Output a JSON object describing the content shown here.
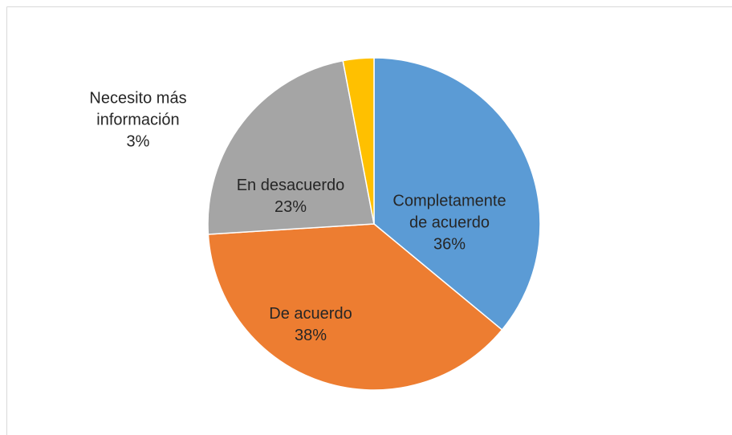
{
  "chart_data": {
    "type": "pie",
    "categories": [
      "Completamente de acuerdo",
      "De acuerdo",
      "En desacuerdo",
      "Necesito más información"
    ],
    "values": [
      36,
      38,
      23,
      3
    ],
    "value_labels": [
      "36%",
      "38%",
      "23%",
      "3%"
    ],
    "colors": [
      "#5b9bd5",
      "#ed7d31",
      "#a5a5a5",
      "#ffc000"
    ]
  }
}
